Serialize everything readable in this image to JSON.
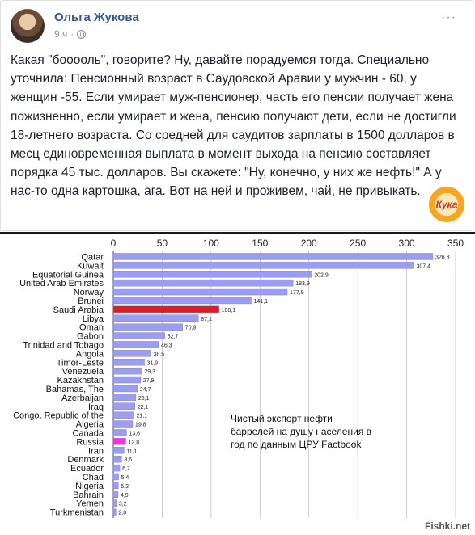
{
  "post": {
    "author": "Ольга Жукова",
    "time": "9 ч",
    "dot": "·",
    "menu": "···",
    "text": "Какая \"бооооль\", говорите? Ну, давайте порадуемся тогда. Специально уточнила: Пенсионный возраст в Саудовской Аравии у мужчин - 60, у женщин -55. Если умирает муж-пенсионер, часть его пенсии получает жена пожизненно, если умирает и жена, пенсию получают дети, если не достигли 18-летнего возраста. Со средней для саудитов зарплаты в 1500 долларов в месц единовременная выплата в момент выхода на пенсию составляет порядка 45 тыс. долларов. Вы скажете: \"Ну, конечно, у них же нефть!\" А у нас-то одна картошка, ага. Вот на ней и проживем, чай, не привыкать.",
    "logo_text": "Кука"
  },
  "chart_data": {
    "type": "bar",
    "orientation": "horizontal",
    "categories": [
      "Qatar",
      "Kuwait",
      "Equatorial Guinea",
      "United Arab Emirates",
      "Norway",
      "Brunei",
      "Saudi Arabia",
      "Libya",
      "Oman",
      "Gabon",
      "Trinidad and Tobago",
      "Angola",
      "Timor-Leste",
      "Venezuela",
      "Kazakhstan",
      "Bahamas, The",
      "Azerbaijan",
      "Iraq",
      "Congo, Republic of the",
      "Algeria",
      "Canada",
      "Russia",
      "Iran",
      "Denmark",
      "Ecuador",
      "Chad",
      "Nigeria",
      "Bahrain",
      "Yemen",
      "Turkmenistan"
    ],
    "values": [
      326.8,
      307.4,
      202.9,
      183.9,
      177.9,
      141.1,
      108.1,
      87.1,
      70.9,
      52.7,
      46.3,
      38.5,
      31.9,
      29.3,
      27.9,
      24.7,
      23.1,
      22.1,
      21.1,
      19.8,
      13.6,
      12.8,
      11.1,
      8.6,
      6.7,
      5.4,
      5.2,
      4.9,
      3.2,
      2.8
    ],
    "value_labels": [
      "326,8",
      "307,4",
      "202,9",
      "183,9",
      "177,9",
      "141,1",
      "108,1",
      "87,1",
      "70,9",
      "52,7",
      "46,3",
      "38,5",
      "31,9",
      "29,3",
      "27,9",
      "24,7",
      "23,1",
      "22,1",
      "21,1",
      "19,8",
      "13,6",
      "12,8",
      "11,1",
      "8,6",
      "6,7",
      "5,4",
      "5,2",
      "4,9",
      "3,2",
      "2,8"
    ],
    "xticks": [
      0,
      50,
      100,
      150,
      200,
      250,
      300,
      350
    ],
    "xlim": [
      0,
      350
    ],
    "grid": true,
    "annotation": "Чистый экспорт нефти\nбаррелей на душу населения в\nгод по данным ЦРУ Factbook",
    "colors": {
      "default": "#9c9cf0",
      "saudi": "#e01b1b",
      "russia": "#ff2ddc",
      "grid": "#bbbbbb",
      "axis": "#444444"
    },
    "highlight": {
      "Saudi Arabia": "saudi",
      "Russia": "russia"
    }
  },
  "watermark": "Fishki.net"
}
